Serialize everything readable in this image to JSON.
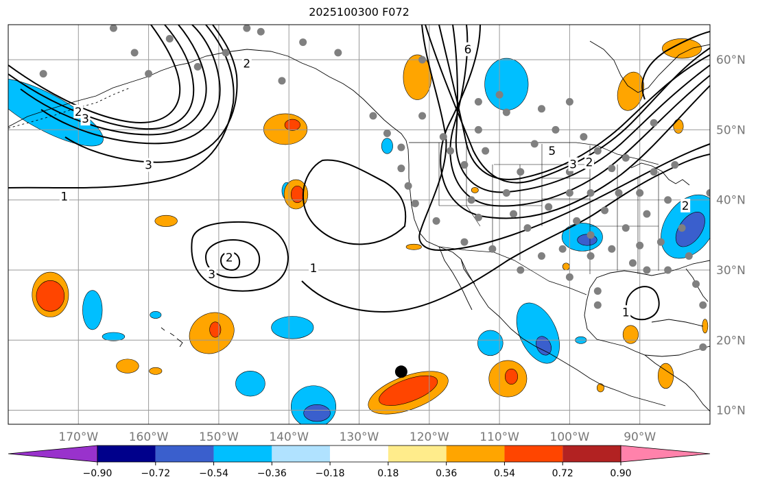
{
  "title": "2025100300 F072",
  "map": {
    "lon_min": -180,
    "lon_max": -80,
    "lat_min": 8,
    "lat_max": 65,
    "lon_ticks": [
      {
        "value": -170,
        "label": "170°W"
      },
      {
        "value": -160,
        "label": "160°W"
      },
      {
        "value": -150,
        "label": "150°W"
      },
      {
        "value": -140,
        "label": "140°W"
      },
      {
        "value": -130,
        "label": "130°W"
      },
      {
        "value": -120,
        "label": "120°W"
      },
      {
        "value": -110,
        "label": "110°W"
      },
      {
        "value": -100,
        "label": "100°W"
      },
      {
        "value": -90,
        "label": "90°W"
      }
    ],
    "lat_ticks": [
      {
        "value": 60,
        "label": "60°N"
      },
      {
        "value": 50,
        "label": "50°N"
      },
      {
        "value": 40,
        "label": "40°N"
      },
      {
        "value": 30,
        "label": "30°N"
      },
      {
        "value": 20,
        "label": "20°N"
      },
      {
        "value": 10,
        "label": "10°N"
      }
    ],
    "grid": true,
    "highlight_point": {
      "lon": -124,
      "lat": 15.5,
      "color": "#000000"
    },
    "station_color": "#808080",
    "stations": [
      [
        -175,
        58
      ],
      [
        -165,
        64.5
      ],
      [
        -162,
        61
      ],
      [
        -160,
        58
      ],
      [
        -157,
        63
      ],
      [
        -153,
        59
      ],
      [
        -149,
        61
      ],
      [
        -146,
        64.5
      ],
      [
        -144,
        64
      ],
      [
        -141,
        57
      ],
      [
        -138,
        62.5
      ],
      [
        -133,
        61
      ],
      [
        -128,
        52
      ],
      [
        -126,
        49.5
      ],
      [
        -124,
        47.5
      ],
      [
        -124,
        44.5
      ],
      [
        -123,
        42
      ],
      [
        -122,
        39.5
      ],
      [
        -121,
        60
      ],
      [
        -121,
        52
      ],
      [
        -119,
        37
      ],
      [
        -118,
        49
      ],
      [
        -117,
        47
      ],
      [
        -115,
        45
      ],
      [
        -115,
        34
      ],
      [
        -113,
        50
      ],
      [
        -113,
        54
      ],
      [
        -114,
        40
      ],
      [
        -113,
        37.5
      ],
      [
        -112,
        47
      ],
      [
        -111,
        33
      ],
      [
        -110,
        55
      ],
      [
        -109,
        52.5
      ],
      [
        -109,
        41
      ],
      [
        -108,
        38
      ],
      [
        -107,
        44
      ],
      [
        -107,
        30
      ],
      [
        -106,
        36
      ],
      [
        -105,
        48
      ],
      [
        -104,
        53
      ],
      [
        -104,
        32
      ],
      [
        -103,
        39
      ],
      [
        -102,
        50
      ],
      [
        -101,
        33
      ],
      [
        -100,
        44
      ],
      [
        -100,
        41
      ],
      [
        -100,
        29
      ],
      [
        -100,
        54
      ],
      [
        -99,
        37
      ],
      [
        -98,
        49
      ],
      [
        -97,
        45.5
      ],
      [
        -97,
        41
      ],
      [
        -97,
        35
      ],
      [
        -97,
        32
      ],
      [
        -96,
        27
      ],
      [
        -96,
        25
      ],
      [
        -96,
        47
      ],
      [
        -95,
        38.5
      ],
      [
        -94,
        44.5
      ],
      [
        -94,
        33
      ],
      [
        -93,
        41
      ],
      [
        -92,
        46
      ],
      [
        -92,
        36
      ],
      [
        -91,
        31
      ],
      [
        -90,
        41
      ],
      [
        -90,
        33.5
      ],
      [
        -89,
        38
      ],
      [
        -89,
        30
      ],
      [
        -88,
        51
      ],
      [
        -88,
        44
      ],
      [
        -87,
        34
      ],
      [
        -86,
        40
      ],
      [
        -86,
        30
      ],
      [
        -85,
        45
      ],
      [
        -84,
        36
      ],
      [
        -83,
        32
      ],
      [
        -82,
        28
      ],
      [
        -81,
        25
      ],
      [
        -81,
        19
      ],
      [
        -80,
        41
      ]
    ],
    "shaded_areas": [
      {
        "level": "-0.54",
        "color": "#00bfff",
        "lon": -174.5,
        "lat": 52.5,
        "rx": 9,
        "ry": 2.6,
        "rot": 28
      },
      {
        "level": "-0.54",
        "color": "#00bfff",
        "lon": -168,
        "lat": 24.3,
        "rx": 1.4,
        "ry": 2.8,
        "rot": 0
      },
      {
        "level": "-0.54",
        "color": "#00bfff",
        "lon": -165,
        "lat": 20.5,
        "rx": 1.6,
        "ry": 0.6,
        "rot": 0
      },
      {
        "level": "-0.54",
        "color": "#00bfff",
        "lon": -159,
        "lat": 23.6,
        "rx": 0.8,
        "ry": 0.5,
        "rot": 0
      },
      {
        "level": "-0.54",
        "color": "#00bfff",
        "lon": -145.5,
        "lat": 13.8,
        "rx": 2.1,
        "ry": 1.8,
        "rot": 0
      },
      {
        "level": "-0.54",
        "color": "#00bfff",
        "lon": -139.5,
        "lat": 21.8,
        "rx": 3,
        "ry": 1.6,
        "rot": 0
      },
      {
        "level": "-0.54",
        "color": "#00bfff",
        "lon": -136.5,
        "lat": 10.5,
        "rx": 3.2,
        "ry": 3,
        "rot": 0
      },
      {
        "level": "-0.72",
        "color": "#3a5fcd",
        "lon": -136,
        "lat": 9.6,
        "rx": 1.9,
        "ry": 1.2,
        "rot": 0
      },
      {
        "level": "-0.54",
        "color": "#00bfff",
        "lon": -140.3,
        "lat": 41.3,
        "rx": 0.7,
        "ry": 1.2,
        "rot": 0
      },
      {
        "level": "-0.54",
        "color": "#00bfff",
        "lon": -126,
        "lat": 47.7,
        "rx": 0.8,
        "ry": 1.1,
        "rot": 0
      },
      {
        "level": "-0.54",
        "color": "#00bfff",
        "lon": -109,
        "lat": 56.5,
        "rx": 3.1,
        "ry": 3.7,
        "rot": 0
      },
      {
        "level": "-0.54",
        "color": "#00bfff",
        "lon": -98.2,
        "lat": 34.7,
        "rx": 2.9,
        "ry": 2,
        "rot": 0
      },
      {
        "level": "-0.72",
        "color": "#3a5fcd",
        "lon": -97.5,
        "lat": 34.3,
        "rx": 1.4,
        "ry": 0.8,
        "rot": 0
      },
      {
        "level": "-0.54",
        "color": "#00bfff",
        "lon": -104.5,
        "lat": 21,
        "rx": 2.6,
        "ry": 4.6,
        "rot": -25
      },
      {
        "level": "-0.72",
        "color": "#3a5fcd",
        "lon": -103.7,
        "lat": 19.2,
        "rx": 1,
        "ry": 1.4,
        "rot": -25
      },
      {
        "level": "-0.54",
        "color": "#00bfff",
        "lon": -111.3,
        "lat": 19.6,
        "rx": 1.8,
        "ry": 1.8,
        "rot": 0
      },
      {
        "level": "-0.54",
        "color": "#00bfff",
        "lon": -98.4,
        "lat": 20,
        "rx": 0.8,
        "ry": 0.5,
        "rot": 0
      },
      {
        "level": "-0.54",
        "color": "#00bfff",
        "lon": -83,
        "lat": 36.2,
        "rx": 3.4,
        "ry": 5,
        "rot": 35
      },
      {
        "level": "-0.72",
        "color": "#3a5fcd",
        "lon": -82.8,
        "lat": 35.8,
        "rx": 1.6,
        "ry": 2.8,
        "rot": 35
      },
      {
        "level": "0.54",
        "color": "#ffa500",
        "lon": -174,
        "lat": 26.5,
        "rx": 2.6,
        "ry": 3.2,
        "rot": 0
      },
      {
        "level": "0.72",
        "color": "#ff4500",
        "lon": -174,
        "lat": 26.3,
        "rx": 2,
        "ry": 2.2,
        "rot": 0
      },
      {
        "level": "0.54",
        "color": "#ffa500",
        "lon": -140.5,
        "lat": 50.1,
        "rx": 3.1,
        "ry": 2.2,
        "rot": 0
      },
      {
        "level": "0.72",
        "color": "#ff4500",
        "lon": -139.5,
        "lat": 50.7,
        "rx": 1.1,
        "ry": 0.8,
        "rot": 0
      },
      {
        "level": "0.54",
        "color": "#ffa500",
        "lon": -139,
        "lat": 40.8,
        "rx": 1.7,
        "ry": 2.1,
        "rot": 0
      },
      {
        "level": "0.72",
        "color": "#ff4500",
        "lon": -138.8,
        "lat": 40.8,
        "rx": 0.9,
        "ry": 1.2,
        "rot": 0
      },
      {
        "level": "0.54",
        "color": "#ffa500",
        "lon": -151,
        "lat": 21,
        "rx": 3.3,
        "ry": 2.8,
        "rot": -30
      },
      {
        "level": "0.72",
        "color": "#ff4500",
        "lon": -150.5,
        "lat": 21.5,
        "rx": 0.8,
        "ry": 1.1,
        "rot": 0
      },
      {
        "level": "0.54",
        "color": "#ffa500",
        "lon": -163,
        "lat": 16.3,
        "rx": 1.6,
        "ry": 1,
        "rot": 0
      },
      {
        "level": "0.54",
        "color": "#ffa500",
        "lon": -159,
        "lat": 15.6,
        "rx": 0.9,
        "ry": 0.5,
        "rot": 0
      },
      {
        "level": "0.54",
        "color": "#ffa500",
        "lon": -157.5,
        "lat": 37,
        "rx": 1.6,
        "ry": 0.8,
        "rot": 0
      },
      {
        "level": "0.54",
        "color": "#ffa500",
        "lon": -121.7,
        "lat": 57.5,
        "rx": 2,
        "ry": 3.2,
        "rot": 0
      },
      {
        "level": "0.54",
        "color": "#ffa500",
        "lon": -123,
        "lat": 12.5,
        "rx": 6,
        "ry": 2.4,
        "rot": -20
      },
      {
        "level": "0.72",
        "color": "#ff4500",
        "lon": -123,
        "lat": 12.8,
        "rx": 4.4,
        "ry": 1.6,
        "rot": -20
      },
      {
        "level": "0.54",
        "color": "#ffa500",
        "lon": -108.8,
        "lat": 14.5,
        "rx": 2.7,
        "ry": 2.6,
        "rot": 0
      },
      {
        "level": "0.72",
        "color": "#ff4500",
        "lon": -108.3,
        "lat": 14.8,
        "rx": 0.9,
        "ry": 1.1,
        "rot": 0
      },
      {
        "level": "0.54",
        "color": "#ffa500",
        "lon": -91.3,
        "lat": 20.8,
        "rx": 1.1,
        "ry": 1.3,
        "rot": 0
      },
      {
        "level": "0.54",
        "color": "#ffa500",
        "lon": -86.3,
        "lat": 14.9,
        "rx": 1.1,
        "ry": 1.8,
        "rot": 0
      },
      {
        "level": "0.54",
        "color": "#ffa500",
        "lon": -91.3,
        "lat": 55.5,
        "rx": 1.8,
        "ry": 2.8,
        "rot": 15
      },
      {
        "level": "0.54",
        "color": "#ffa500",
        "lon": -84,
        "lat": 61.6,
        "rx": 2.8,
        "ry": 1.4,
        "rot": 0
      },
      {
        "level": "0.54",
        "color": "#ffa500",
        "lon": -84.5,
        "lat": 50.5,
        "rx": 0.7,
        "ry": 1,
        "rot": 0
      },
      {
        "level": "0.54",
        "color": "#ffa500",
        "lon": -80.7,
        "lat": 22,
        "rx": 0.4,
        "ry": 1,
        "rot": 0
      },
      {
        "level": "0.54",
        "color": "#ffa500",
        "lon": -122.2,
        "lat": 33.3,
        "rx": 1.1,
        "ry": 0.4,
        "rot": 0
      },
      {
        "level": "0.54",
        "color": "#ffa500",
        "lon": -95.6,
        "lat": 13.2,
        "rx": 0.5,
        "ry": 0.6,
        "rot": 0
      },
      {
        "level": "0.54",
        "color": "#ffa500",
        "lon": -100.5,
        "lat": 30.5,
        "rx": 0.5,
        "ry": 0.5,
        "rot": 0
      },
      {
        "level": "0.54",
        "color": "#ffa500",
        "lon": -113.5,
        "lat": 41.4,
        "rx": 0.5,
        "ry": 0.4,
        "rot": 0
      }
    ],
    "contour_labels": [
      {
        "text": "2",
        "lon": -170,
        "lat": 52.6
      },
      {
        "text": "3",
        "lon": -169,
        "lat": 51.6
      },
      {
        "text": "3",
        "lon": -160,
        "lat": 45
      },
      {
        "text": "1",
        "lon": -172,
        "lat": 40.5
      },
      {
        "text": "2",
        "lon": -146,
        "lat": 59.5
      },
      {
        "text": "2",
        "lon": -148.5,
        "lat": 31.8
      },
      {
        "text": "3",
        "lon": -151,
        "lat": 29.4
      },
      {
        "text": "1",
        "lon": -136.5,
        "lat": 30.3
      },
      {
        "text": "6",
        "lon": -114.5,
        "lat": 61.5
      },
      {
        "text": "5",
        "lon": -102.5,
        "lat": 47
      },
      {
        "text": "3",
        "lon": -99.5,
        "lat": 45.1
      },
      {
        "text": "2",
        "lon": -97.2,
        "lat": 45.4
      },
      {
        "text": "1",
        "lon": -92,
        "lat": 24
      },
      {
        "text": "2",
        "lon": -83.5,
        "lat": 39.2
      }
    ]
  },
  "colorbar": {
    "colors": [
      "#9932cc",
      "#00008b",
      "#3a5fcd",
      "#00bfff",
      "#b0e2ff",
      "#ffffff",
      "#ffec8b",
      "#ffa500",
      "#ff4500",
      "#b22222",
      "#ff82ab"
    ],
    "labels": [
      "−0.90",
      "−0.72",
      "−0.54",
      "−0.36",
      "−0.18",
      "0.18",
      "0.36",
      "0.54",
      "0.72",
      "0.90"
    ]
  }
}
